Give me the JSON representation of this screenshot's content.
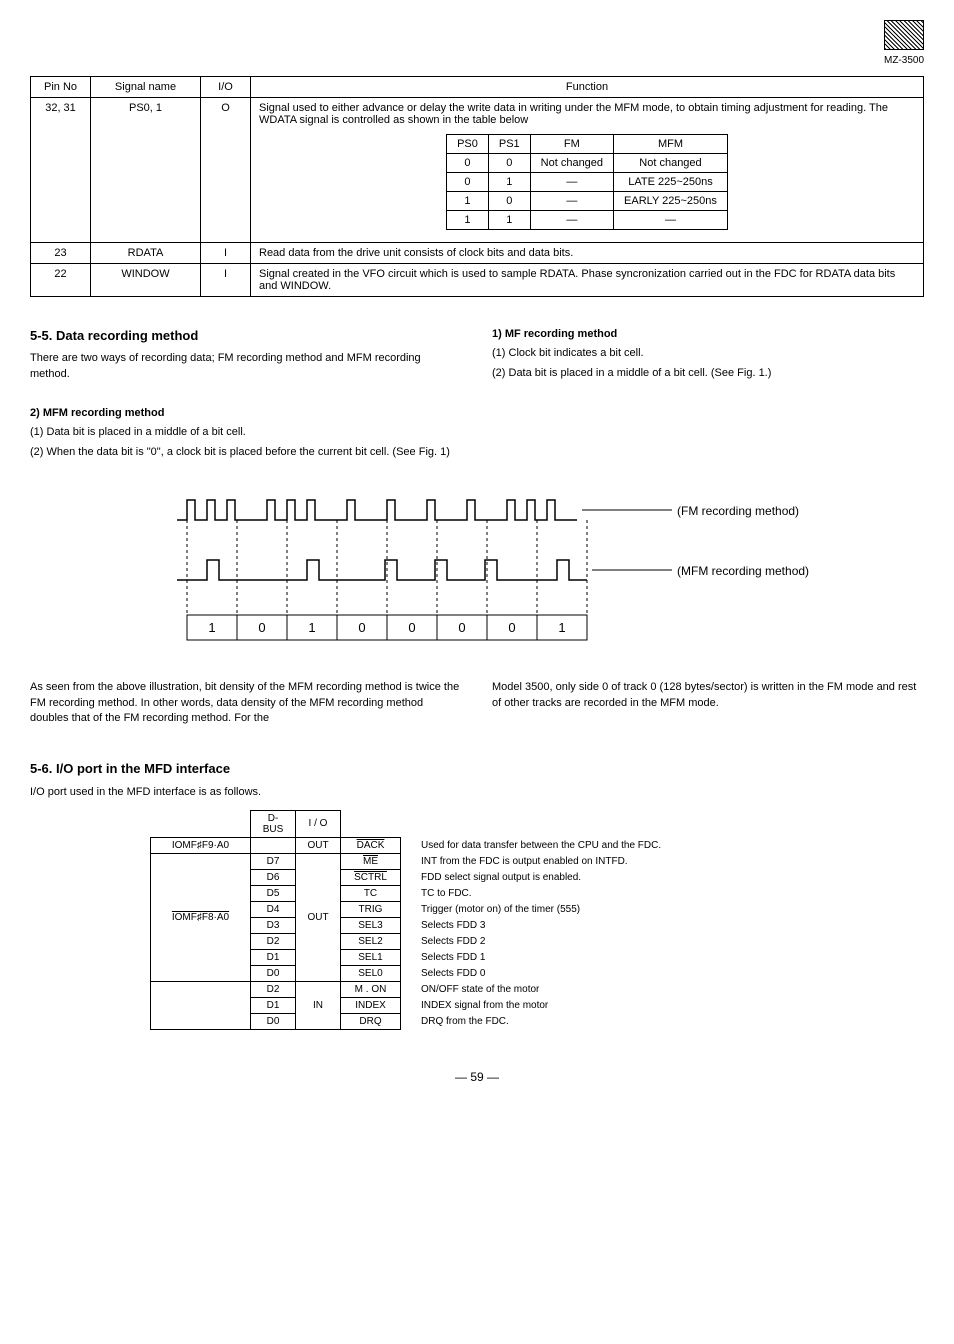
{
  "logo": {
    "text": "MZ-3500"
  },
  "pin_table": {
    "headers": [
      "Pin No",
      "Signal name",
      "I/O",
      "Function"
    ],
    "rows": [
      {
        "pin": "32, 31",
        "signal": "PS0, 1",
        "io": "O",
        "func_intro": "Signal used to either advance or delay the write data in writing under the MFM mode, to obtain timing adjustment for reading. The WDATA signal is controlled as shown in the table below",
        "nested": {
          "headers": [
            "PS0",
            "PS1",
            "FM",
            "MFM"
          ],
          "rows": [
            [
              "0",
              "0",
              "Not changed",
              "Not changed"
            ],
            [
              "0",
              "1",
              "—",
              "LATE 225~250ns"
            ],
            [
              "1",
              "0",
              "—",
              "EARLY 225~250ns"
            ],
            [
              "1",
              "1",
              "—",
              "—"
            ]
          ]
        }
      },
      {
        "pin": "23",
        "signal": "RDATA",
        "io": "I",
        "func": "Read data from the drive unit consists of clock bits and data bits."
      },
      {
        "pin": "22",
        "signal": "WINDOW",
        "io": "I",
        "func": "Signal created in the VFO circuit which is used to sample RDATA. Phase syncronization carried out in the FDC for RDATA data bits and WINDOW."
      }
    ]
  },
  "section_55": {
    "title": "5-5.  Data recording method",
    "left_intro": "There are two ways of recording data; FM recording method and MFM recording method.",
    "right_title": "1) MF recording method",
    "right_1": "(1)  Clock bit indicates a bit cell.",
    "right_2": "(2)  Data bit is placed in a middle of a bit cell. (See Fig. 1.)",
    "mfm_title": "2) MFM recording method",
    "mfm_1": "(1)  Data bit is placed in a middle of a bit cell.",
    "mfm_2": "(2)  When the data bit is \"0\", a clock bit is placed before the current bit cell. (See Fig. 1)",
    "below_left": "As seen from the above illustration, bit density of the MFM recording method is twice the FM recording method. In other words, data density of the MFM recording method doubles that of the FM recording method. For the",
    "below_right": "Model 3500, only side 0 of track 0 (128 bytes/sector) is written in the FM mode and rest of other tracks are recorded in the MFM mode."
  },
  "diagram": {
    "label_fm": "(FM recording method)",
    "label_mfm": "(MFM recording method)",
    "bits": [
      "1",
      "0",
      "1",
      "0",
      "0",
      "0",
      "0",
      "1"
    ]
  },
  "section_56": {
    "title": "5-6.  I/O port in the MFD interface",
    "intro": "I/O port used in the MFD interface is as follows.",
    "header_dbus": "D-BUS",
    "header_io": "I / O",
    "rows": [
      {
        "addr": "IOMF♯F9·A0",
        "dbus": "",
        "io": "OUT",
        "sig": "DACK",
        "desc": "Used for data transfer between the CPU and the FDC.",
        "overline": true
      },
      {
        "addr": "",
        "dbus": "D7",
        "io": "",
        "sig": "ME",
        "desc": "INT from the FDC is output enabled on INTFD.",
        "overline": true
      },
      {
        "addr": "",
        "dbus": "D6",
        "io": "",
        "sig": "SCTRL",
        "desc": "FDD select signal output is enabled.",
        "overline": true
      },
      {
        "addr": "",
        "dbus": "D5",
        "io": "",
        "sig": "TC",
        "desc": "TC to FDC."
      },
      {
        "addr": "",
        "dbus": "D4",
        "io": "OUT",
        "sig": "TRIG",
        "desc": "Trigger (motor on) of the timer (555)"
      },
      {
        "addr": "",
        "dbus": "D3",
        "io": "",
        "sig": "SEL3",
        "desc": "Selects FDD 3"
      },
      {
        "addr": "IOMF♯F8·A0",
        "dbus": "D2",
        "io": "",
        "sig": "SEL2",
        "desc": "Selects FDD 2",
        "addr_overline": true
      },
      {
        "addr": "",
        "dbus": "D1",
        "io": "",
        "sig": "SEL1",
        "desc": "Selects FDD 1"
      },
      {
        "addr": "",
        "dbus": "D0",
        "io": "",
        "sig": "SEL0",
        "desc": "Selects FDD 0"
      },
      {
        "addr": "",
        "dbus": "D2",
        "io": "",
        "sig": "M . ON",
        "desc": "ON/OFF state of the motor"
      },
      {
        "addr": "",
        "dbus": "D1",
        "io": "IN",
        "sig": "INDEX",
        "desc": "INDEX signal from the motor"
      },
      {
        "addr": "",
        "dbus": "D0",
        "io": "",
        "sig": "DRQ",
        "desc": "DRQ from the FDC."
      }
    ]
  },
  "page": "— 59 —"
}
